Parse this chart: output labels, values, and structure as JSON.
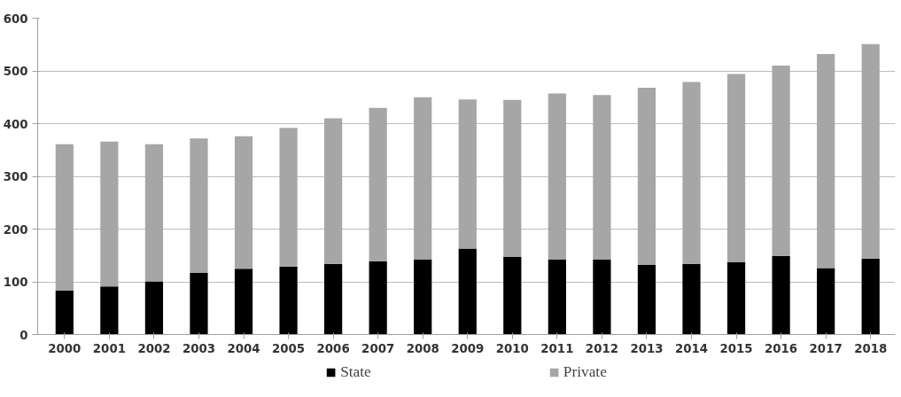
{
  "chart_data": {
    "type": "bar",
    "stacked": true,
    "categories": [
      "2000",
      "2001",
      "2002",
      "2003",
      "2004",
      "2005",
      "2006",
      "2007",
      "2008",
      "2009",
      "2010",
      "2011",
      "2012",
      "2013",
      "2014",
      "2015",
      "2016",
      "2017",
      "2018"
    ],
    "series": [
      {
        "name": "State",
        "color": "#000000",
        "values": [
          83,
          91,
          101,
          117,
          125,
          129,
          134,
          139,
          142,
          163,
          147,
          142,
          142,
          132,
          134,
          137,
          149,
          126,
          144
        ]
      },
      {
        "name": "Private",
        "color": "#a6a6a6",
        "values": [
          278,
          275,
          260,
          255,
          251,
          263,
          276,
          291,
          308,
          283,
          298,
          315,
          312,
          336,
          345,
          357,
          361,
          406,
          407
        ]
      }
    ],
    "ylim": [
      0,
      600
    ],
    "yticks": [
      0,
      100,
      200,
      300,
      400,
      500,
      600
    ],
    "grid": "y",
    "legend": "bottom"
  }
}
